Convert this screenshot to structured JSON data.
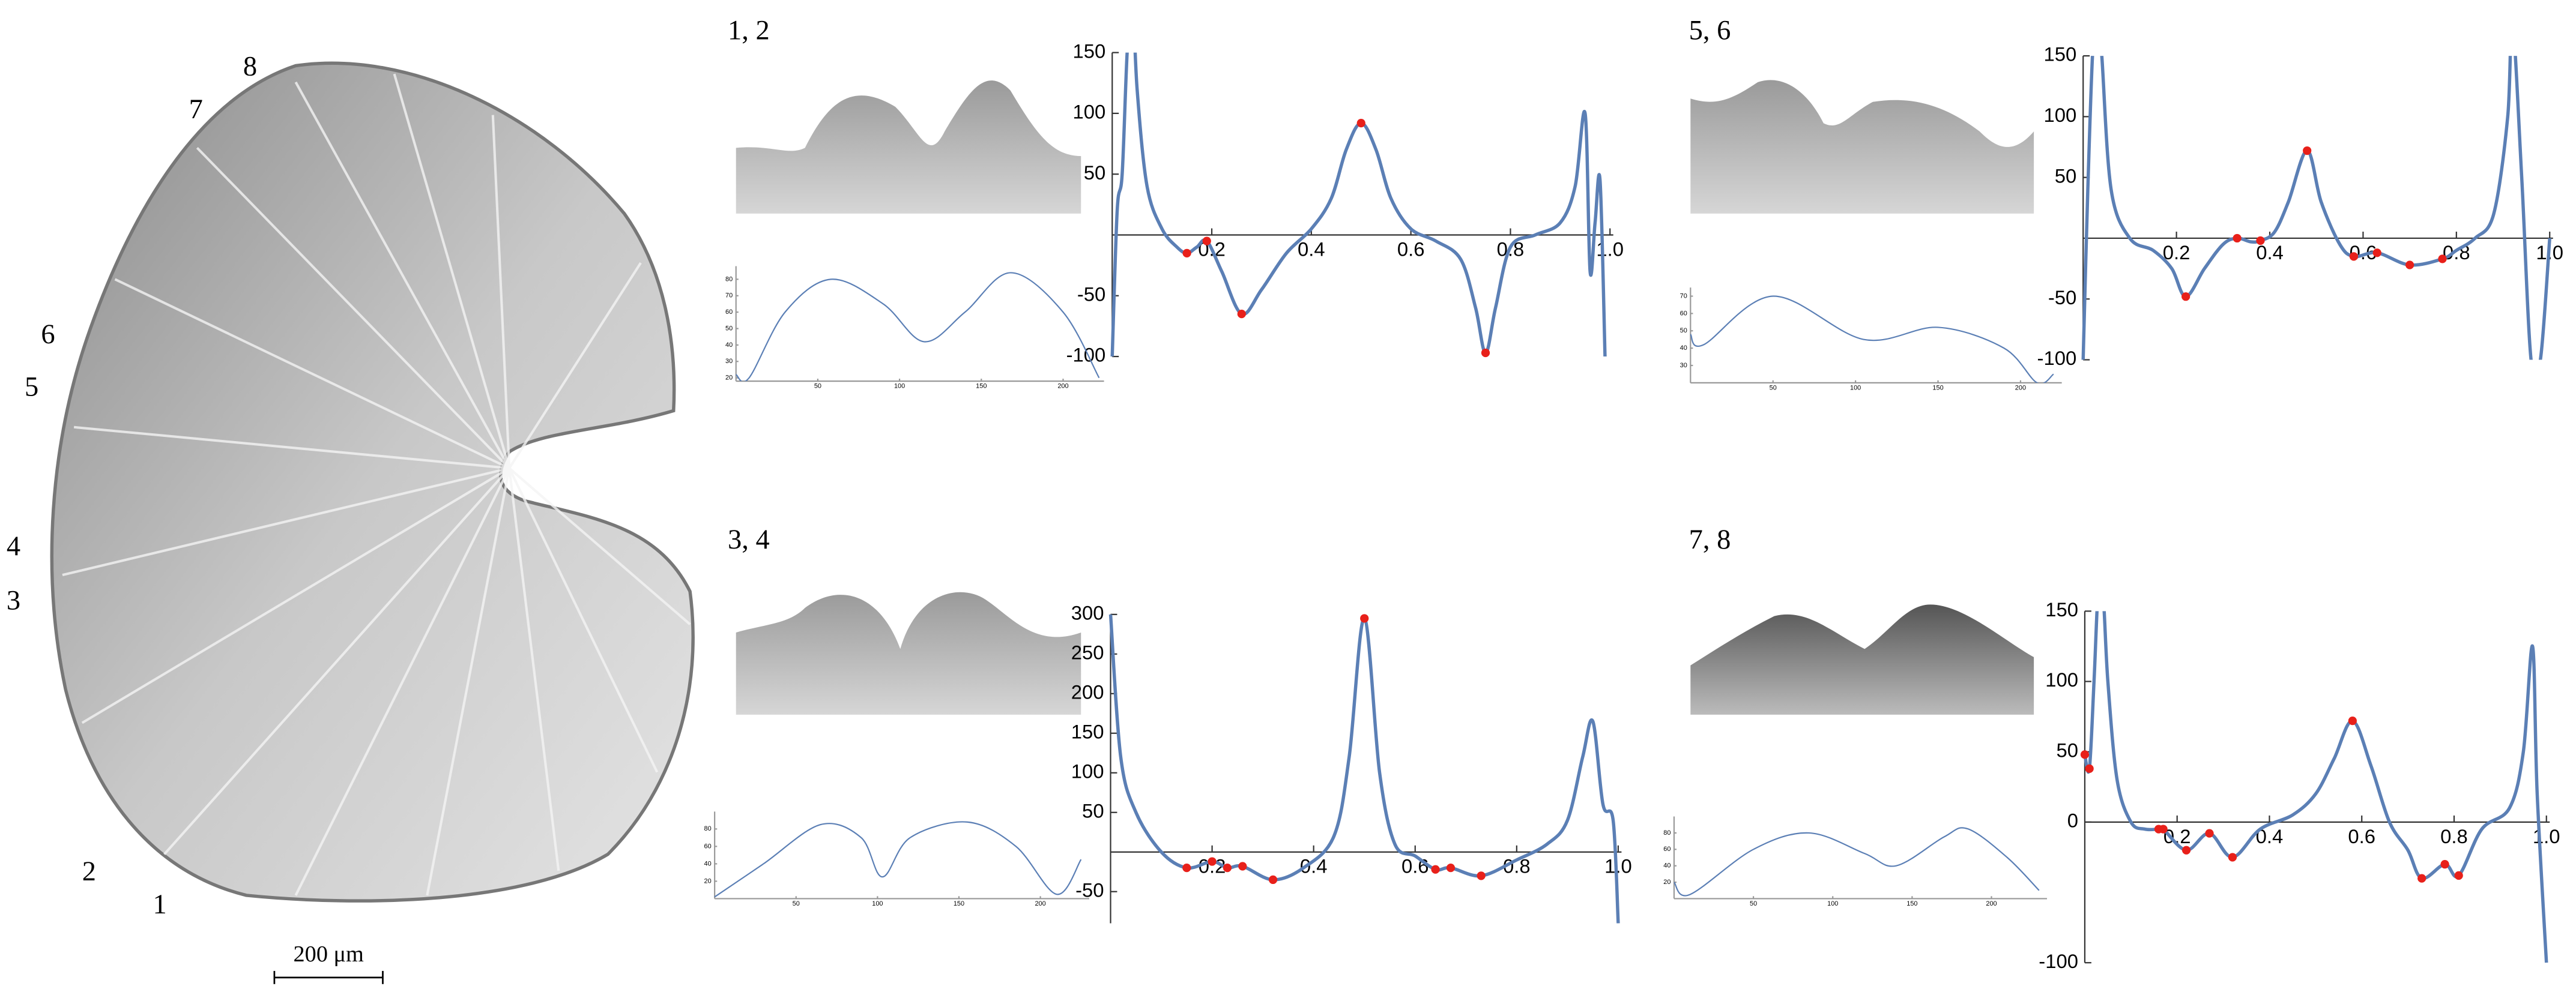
{
  "figure": {
    "markers": [
      "1",
      "2",
      "3",
      "4",
      "5",
      "6",
      "7",
      "8"
    ],
    "scale_bar": "200 μm",
    "panels": [
      {
        "label": "1, 2"
      },
      {
        "label": "5, 6"
      },
      {
        "label": "3, 4"
      },
      {
        "label": "7, 8"
      }
    ]
  },
  "chart_data": [
    {
      "type": "line",
      "color": "#5b7fb5",
      "x": [
        0,
        0.01,
        0.02,
        0.03,
        0.04,
        0.05,
        0.07,
        0.1,
        0.13,
        0.15,
        0.17,
        0.19,
        0.22,
        0.26,
        0.3,
        0.35,
        0.4,
        0.44,
        0.47,
        0.5,
        0.53,
        0.56,
        0.6,
        0.65,
        0.7,
        0.73,
        0.75,
        0.77,
        0.8,
        0.85,
        0.9,
        0.93,
        0.95,
        0.96,
        0.97,
        0.98,
        0.99
      ],
      "values": [
        -100,
        20,
        50,
        150,
        200,
        120,
        40,
        5,
        -10,
        -15,
        -10,
        -5,
        -30,
        -65,
        -45,
        -15,
        5,
        30,
        70,
        92,
        70,
        30,
        5,
        -5,
        -20,
        -60,
        -97,
        -60,
        -10,
        0,
        10,
        40,
        100,
        -30,
        10,
        45,
        -100
      ],
      "points": {
        "color": "#e8201a",
        "x": [
          0.15,
          0.19,
          0.26,
          0.5,
          0.75
        ],
        "values": [
          -15,
          -5,
          -65,
          92,
          -97
        ]
      },
      "xlim": [
        0,
        1
      ],
      "ylim": [
        -100,
        150
      ],
      "xticks": [
        0.2,
        0.4,
        0.6,
        0.8,
        {
          "value": 1,
          "label": "1.0"
        }
      ],
      "yticks": [
        -100,
        -50,
        50,
        100,
        150
      ]
    },
    {
      "type": "line",
      "color": "#5b7fb5",
      "x": [
        0,
        8,
        30,
        58,
        90,
        115,
        140,
        168,
        200,
        222
      ],
      "values": [
        22,
        20,
        60,
        80,
        65,
        42,
        60,
        84,
        60,
        20
      ],
      "xlim": [
        0,
        225
      ],
      "ylim": [
        18,
        88
      ],
      "xticks": [
        50,
        100,
        150,
        200
      ],
      "yticks": [
        20,
        30,
        40,
        50,
        60,
        70,
        80
      ]
    },
    {
      "type": "line",
      "color": "#5b7fb5",
      "x": [
        0,
        0.01,
        0.02,
        0.03,
        0.04,
        0.06,
        0.1,
        0.15,
        0.19,
        0.22,
        0.26,
        0.3,
        0.33,
        0.36,
        0.38,
        0.41,
        0.44,
        0.48,
        0.51,
        0.55,
        0.58,
        0.63,
        0.7,
        0.77,
        0.8,
        0.84,
        0.88,
        0.91,
        0.92,
        0.94,
        0.96,
        0.98,
        1.0
      ],
      "values": [
        -100,
        40,
        150,
        200,
        150,
        40,
        0,
        -10,
        -25,
        -48,
        -25,
        -5,
        0,
        -3,
        -2,
        5,
        30,
        72,
        30,
        -5,
        -15,
        -12,
        -22,
        -17,
        -10,
        0,
        20,
        100,
        180,
        50,
        -100,
        -100,
        0
      ],
      "points": {
        "color": "#e8201a",
        "x": [
          0.22,
          0.33,
          0.38,
          0.48,
          0.58,
          0.63,
          0.7,
          0.77
        ],
        "values": [
          -48,
          0,
          -2,
          72,
          -15,
          -12,
          -22,
          -17
        ]
      },
      "xlim": [
        0,
        1
      ],
      "ylim": [
        -100,
        150
      ],
      "xticks": [
        0.2,
        0.4,
        0.6,
        0.8,
        {
          "value": 1,
          "label": "1.0"
        }
      ],
      "yticks": [
        -100,
        -50,
        50,
        100,
        150
      ]
    },
    {
      "type": "line",
      "color": "#5b7fb5",
      "x": [
        0,
        8,
        50,
        105,
        150,
        190,
        210,
        220
      ],
      "values": [
        48,
        42,
        70,
        45,
        52,
        40,
        20,
        25
      ],
      "xlim": [
        0,
        225
      ],
      "ylim": [
        20,
        75
      ],
      "xticks": [
        50,
        100,
        150,
        200
      ],
      "yticks": [
        30,
        40,
        50,
        60,
        70
      ]
    },
    {
      "type": "line",
      "color": "#5b7fb5",
      "x": [
        0,
        0.02,
        0.05,
        0.1,
        0.15,
        0.2,
        0.23,
        0.26,
        0.32,
        0.38,
        0.44,
        0.47,
        0.5,
        0.53,
        0.56,
        0.6,
        0.64,
        0.67,
        0.73,
        0.8,
        0.86,
        0.9,
        0.93,
        0.95,
        0.97,
        0.99,
        1.0
      ],
      "values": [
        300,
        120,
        50,
        0,
        -20,
        -12,
        -20,
        -18,
        -35,
        -20,
        20,
        120,
        295,
        100,
        10,
        -5,
        -22,
        -20,
        -30,
        -10,
        10,
        40,
        120,
        165,
        60,
        40,
        -90
      ],
      "points": {
        "color": "#e8201a",
        "x": [
          0.15,
          0.2,
          0.23,
          0.26,
          0.32,
          0.5,
          0.64,
          0.67,
          0.73
        ],
        "values": [
          -20,
          -12,
          -20,
          -18,
          -35,
          295,
          -22,
          -20,
          -30
        ]
      },
      "xlim": [
        0,
        1
      ],
      "ylim": [
        -90,
        300
      ],
      "xticks": [
        0.2,
        0.4,
        0.6,
        0.8,
        {
          "value": 1,
          "label": "1.0"
        }
      ],
      "yticks": [
        -50,
        50,
        100,
        150,
        200,
        250,
        300
      ]
    },
    {
      "type": "line",
      "color": "#5b7fb5",
      "x": [
        0,
        30,
        65,
        90,
        103,
        120,
        155,
        185,
        210,
        225
      ],
      "values": [
        2,
        40,
        85,
        70,
        25,
        70,
        88,
        60,
        5,
        45
      ],
      "xlim": [
        0,
        230
      ],
      "ylim": [
        0,
        100
      ],
      "xticks": [
        50,
        100,
        150,
        200
      ],
      "yticks": [
        20,
        40,
        60,
        80
      ]
    },
    {
      "type": "line",
      "color": "#5b7fb5",
      "x": [
        0,
        0.01,
        0.02,
        0.03,
        0.04,
        0.05,
        0.07,
        0.1,
        0.13,
        0.16,
        0.17,
        0.22,
        0.27,
        0.32,
        0.38,
        0.45,
        0.5,
        0.54,
        0.58,
        0.62,
        0.66,
        0.7,
        0.73,
        0.78,
        0.81,
        0.86,
        0.92,
        0.95,
        0.97,
        0.98,
        1.0
      ],
      "values": [
        48,
        38,
        100,
        170,
        160,
        100,
        30,
        0,
        -5,
        -5,
        -5,
        -20,
        -8,
        -25,
        -5,
        5,
        20,
        45,
        72,
        40,
        0,
        -20,
        -40,
        -30,
        -38,
        -5,
        10,
        50,
        125,
        20,
        -100
      ],
      "points": {
        "color": "#e8201a",
        "x": [
          0,
          0.01,
          0.16,
          0.17,
          0.22,
          0.27,
          0.32,
          0.58,
          0.73,
          0.78,
          0.81
        ],
        "values": [
          48,
          38,
          -5,
          -5,
          -20,
          -8,
          -25,
          72,
          -40,
          -30,
          -38
        ]
      },
      "xlim": [
        0,
        1
      ],
      "ylim": [
        -100,
        150
      ],
      "xticks": [
        0.2,
        0.4,
        0.6,
        0.8,
        {
          "value": 1,
          "label": "1.0"
        }
      ],
      "yticks": [
        -100,
        0,
        50,
        100,
        150
      ]
    },
    {
      "type": "line",
      "color": "#5b7fb5",
      "x": [
        0,
        10,
        50,
        85,
        120,
        140,
        170,
        185,
        210,
        230
      ],
      "values": [
        20,
        5,
        60,
        80,
        55,
        40,
        75,
        85,
        50,
        10
      ],
      "xlim": [
        0,
        235
      ],
      "ylim": [
        0,
        100
      ],
      "xticks": [
        50,
        100,
        150,
        200
      ],
      "yticks": [
        20,
        40,
        60,
        80
      ]
    }
  ]
}
